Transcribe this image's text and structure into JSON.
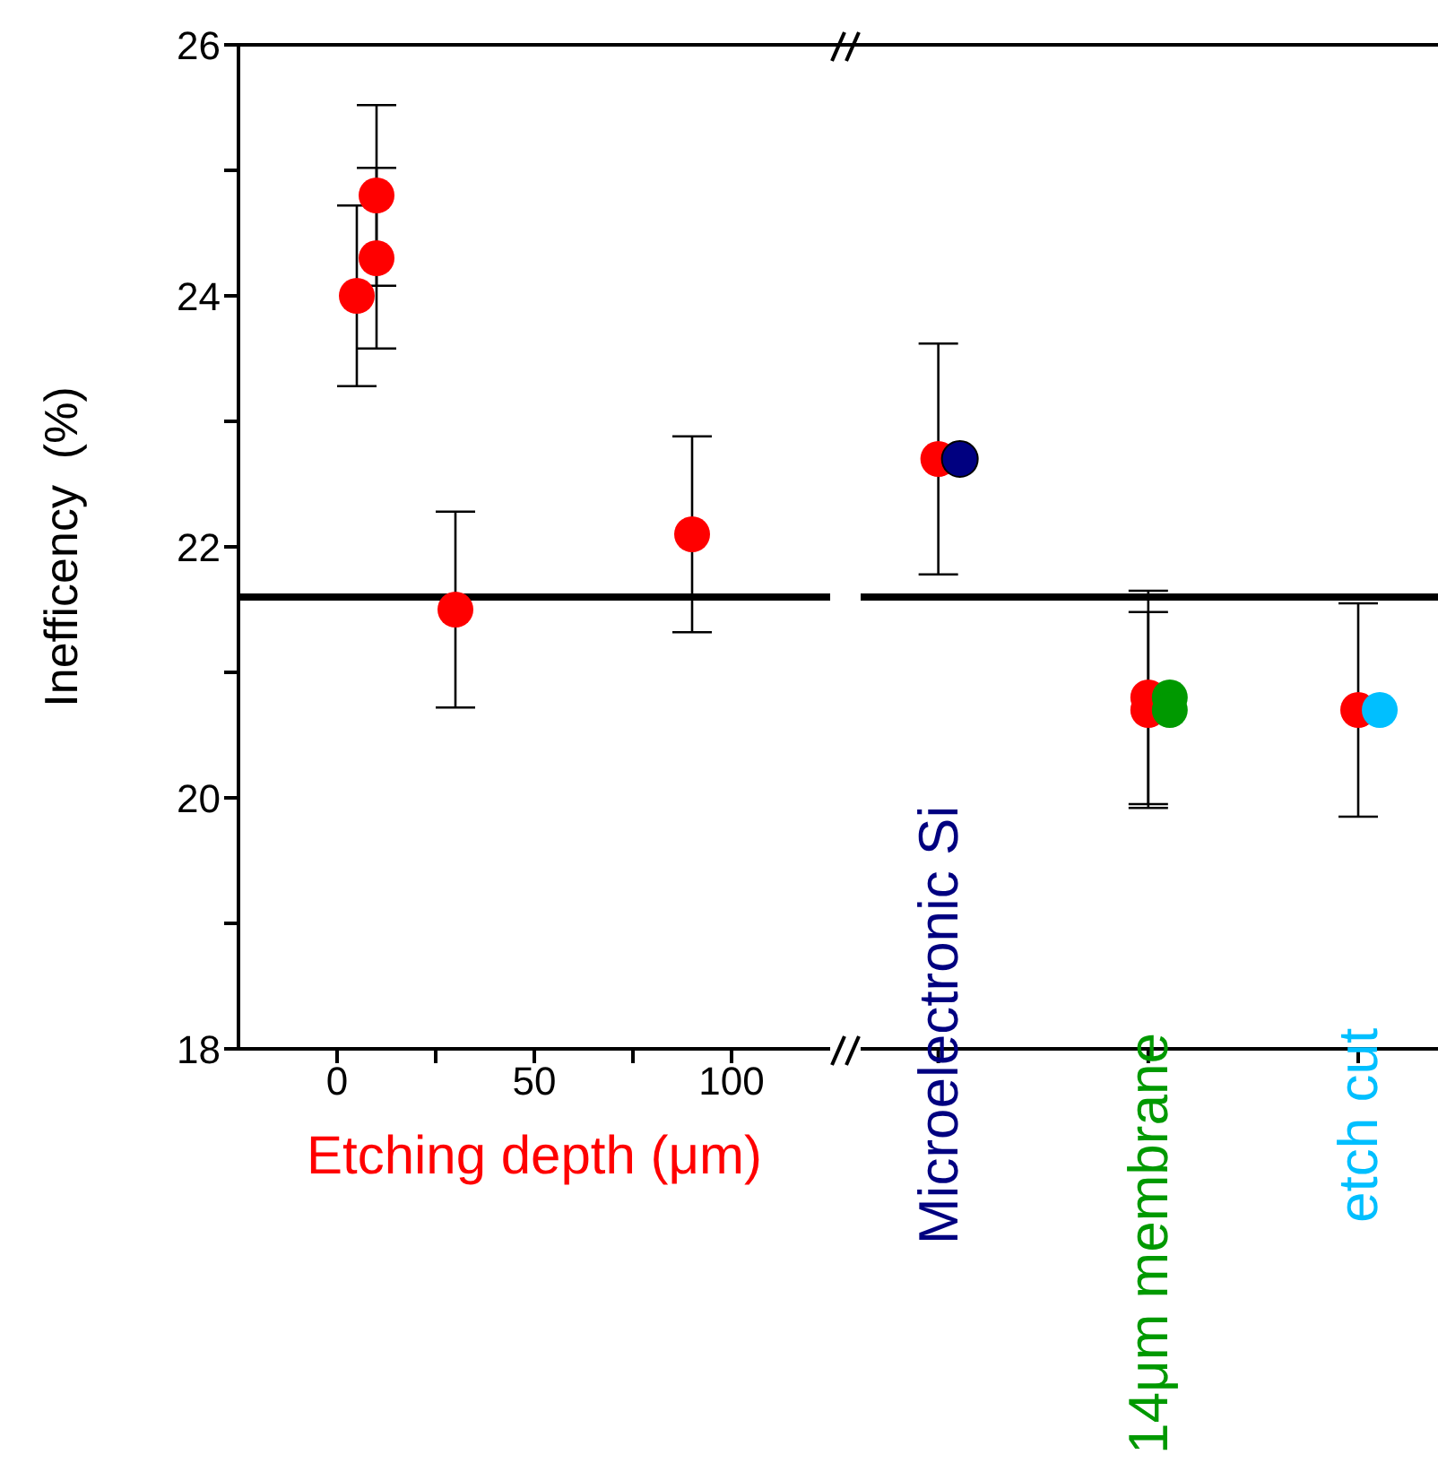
{
  "chart_data": [
    {
      "type": "scatter",
      "xlabel": "Etching depth (μm)",
      "ylabel": "Inefficency  (%)",
      "xlim": [
        -25,
        125
      ],
      "xticks": [
        0,
        {
          "value": 25,
          "label": null
        },
        50,
        {
          "value": 75,
          "label": null
        },
        100
      ],
      "ylim": [
        18,
        26
      ],
      "yticks": [
        18,
        {
          "value": 19,
          "label": null
        },
        20,
        {
          "value": 21,
          "label": null
        },
        22,
        {
          "value": 23,
          "label": null
        },
        24,
        {
          "value": 25,
          "label": null
        },
        26
      ],
      "marker": "circle",
      "grid": false,
      "legend": false,
      "series": [
        {
          "color": "#ff0000",
          "x": [
            5,
            10,
            10,
            30,
            90
          ],
          "values": [
            24.0,
            24.8,
            24.3,
            21.5,
            22.1
          ],
          "errors": [
            0.72,
            0.72,
            0.72,
            0.78,
            0.78
          ]
        }
      ],
      "ref_lines": [
        {
          "axis": "y",
          "value": 21.6,
          "color": "#000000"
        }
      ]
    },
    {
      "type": "scatter",
      "categories": [
        "Microelectronic Si",
        "14μm membrane",
        "etch cut"
      ],
      "ylim": [
        18,
        26
      ],
      "tick_labels": "x",
      "marker": "circle",
      "grid": false,
      "legend": false,
      "series": [
        {
          "color": "#ff0000",
          "values": [
            22.7,
            20.8,
            20.7
          ],
          "errors": [
            0.92,
            0.85,
            0.85
          ]
        },
        {
          "color": "#ff0000",
          "values": [
            null,
            20.7,
            null
          ],
          "errors": [
            null,
            0.78,
            null
          ]
        },
        {
          "colors": [
            "#000080",
            "#009900",
            "#00bfff"
          ],
          "values": [
            22.7,
            20.8,
            20.7
          ]
        },
        {
          "color": "#009900",
          "values": [
            null,
            20.7,
            null
          ]
        }
      ],
      "ref_lines": [
        {
          "axis": "y",
          "value": 21.6,
          "color": "#000000"
        }
      ]
    }
  ]
}
